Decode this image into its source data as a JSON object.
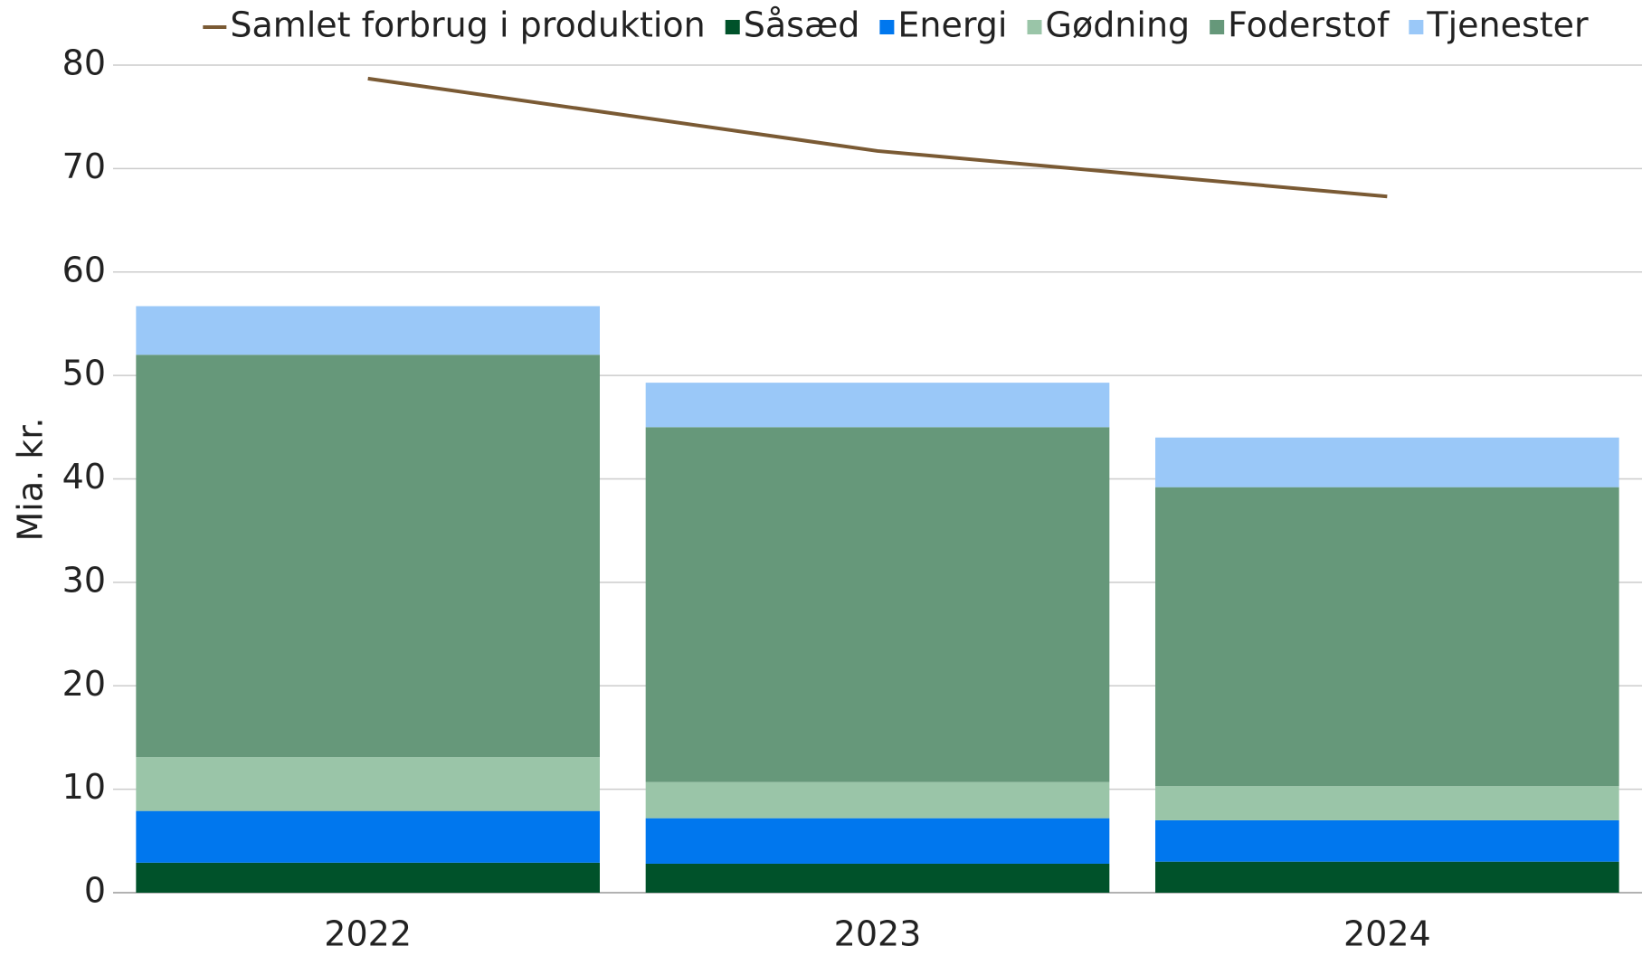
{
  "chart_data": {
    "type": "bar",
    "categories": [
      "2022",
      "2023",
      "2024"
    ],
    "y_label": "Mia. kr.",
    "ylim": [
      0,
      80
    ],
    "yticks": [
      0,
      10,
      20,
      30,
      40,
      50,
      60,
      70,
      80
    ],
    "grid": true,
    "stacked": true,
    "legend": "top",
    "series": [
      {
        "name": "Samlet forbrug i produktion",
        "type": "line",
        "color": "#7a5a34",
        "values": [
          78.7,
          71.7,
          67.3
        ]
      },
      {
        "name": "Såsæd",
        "color": "#00522a",
        "values": [
          2.9,
          2.8,
          3.0
        ]
      },
      {
        "name": "Energi",
        "color": "#0077ee",
        "values": [
          5.0,
          4.4,
          4.0
        ]
      },
      {
        "name": "Gødning",
        "color": "#9ac5a8",
        "values": [
          5.2,
          3.5,
          3.3
        ]
      },
      {
        "name": "Foderstof",
        "color": "#66987a",
        "values": [
          38.9,
          34.3,
          28.9
        ]
      },
      {
        "name": "Tjenester",
        "color": "#9ac8f8",
        "values": [
          4.7,
          4.3,
          4.8
        ]
      }
    ]
  }
}
